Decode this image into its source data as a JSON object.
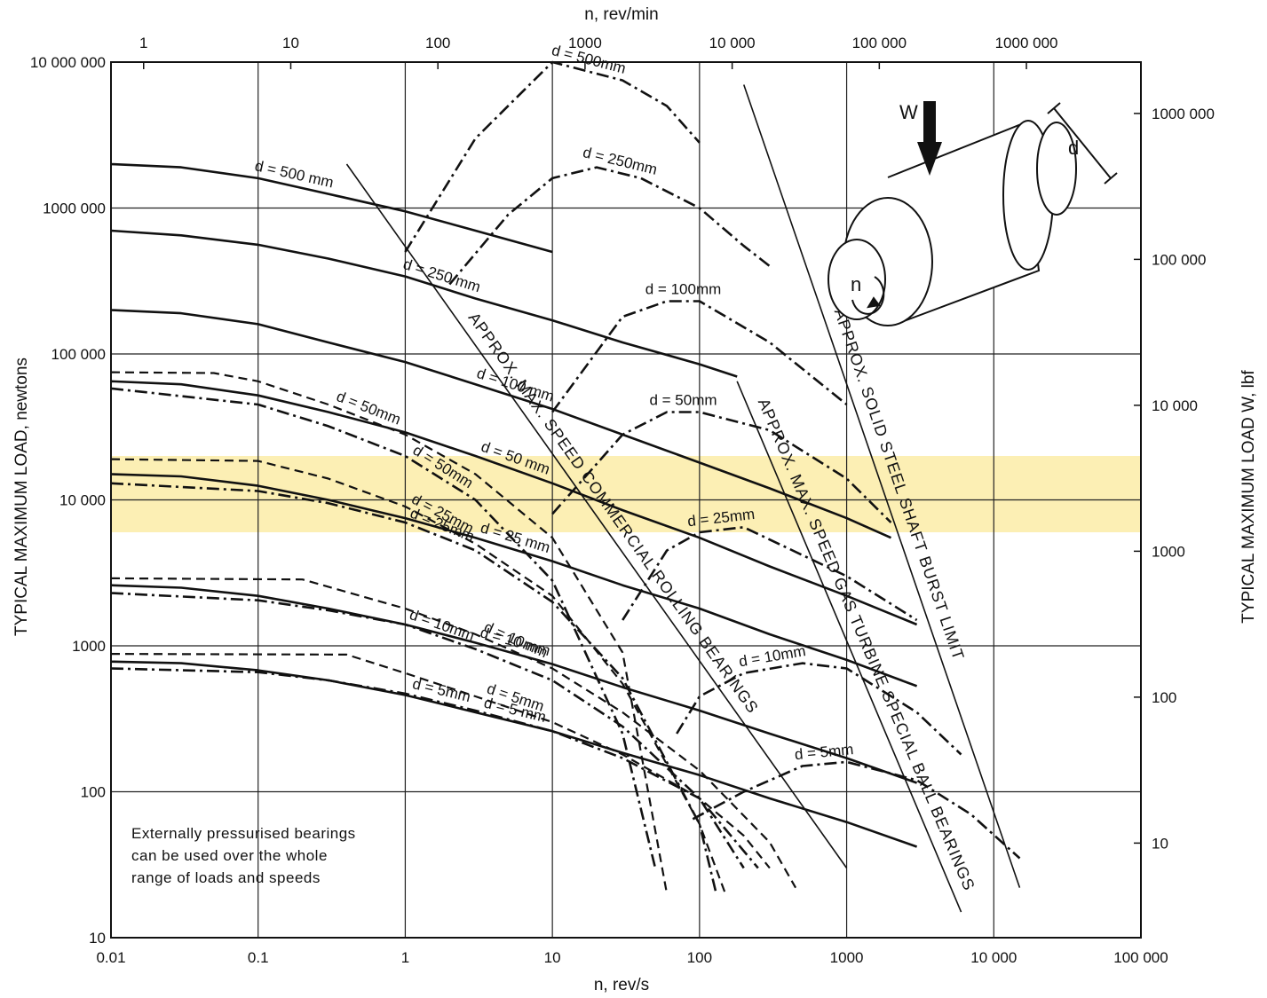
{
  "chart_data": {
    "type": "line",
    "title": "",
    "xlabel": "n, rev/s",
    "xlabel_top": "n, rev/min",
    "ylabel": "TYPICAL MAXIMUM LOAD, newtons",
    "ylabel_right": "TYPICAL MAXIMUM LOAD W, lbf",
    "xscale": "log",
    "yscale": "log",
    "xlim": [
      0.01,
      100000
    ],
    "ylim": [
      10,
      10000000
    ],
    "x_ticks": [
      "0.01",
      "0.1",
      "1",
      "10",
      "100",
      "1000",
      "10 000",
      "100 000"
    ],
    "x_top_ticks": [
      "1",
      "10",
      "100",
      "1000",
      "10 000",
      "100 000",
      "1000 000"
    ],
    "y_ticks": [
      "10",
      "100",
      "1000",
      "10 000",
      "100 000",
      "1000 000",
      "10 000 000"
    ],
    "y_right_ticks": [
      "10",
      "100",
      "1000",
      "10 000",
      "100 000",
      "1000 000"
    ],
    "grid": true,
    "highlight": {
      "y_range": [
        6000,
        20000
      ],
      "color": "#fcefb4"
    },
    "note": [
      "Externally pressurised bearings",
      "can be used over the whole",
      "range of loads and speeds"
    ],
    "inset": {
      "load_label": "W",
      "speed_label": "n",
      "diameter_label": "d"
    },
    "series": [
      {
        "name": "d = 500 mm",
        "style": "solid",
        "x": [
          0.01,
          0.03,
          0.1,
          0.3,
          1,
          3,
          10
        ],
        "y": [
          2000000,
          1900000,
          1600000,
          1250000,
          950000,
          700000,
          500000
        ]
      },
      {
        "name": "d = 250 mm",
        "style": "solid",
        "x": [
          0.01,
          0.03,
          0.1,
          0.3,
          1,
          3,
          10,
          30,
          100,
          180
        ],
        "y": [
          700000,
          650000,
          560000,
          450000,
          340000,
          240000,
          170000,
          120000,
          85000,
          70000
        ]
      },
      {
        "name": "d = 100 mm",
        "style": "solid",
        "x": [
          0.01,
          0.03,
          0.1,
          0.3,
          1,
          3,
          10,
          30,
          100,
          300,
          1000,
          2000
        ],
        "y": [
          200000,
          190000,
          160000,
          120000,
          88000,
          62000,
          42000,
          28000,
          18000,
          12000,
          7500,
          5500
        ]
      },
      {
        "name": "d = 50 mm",
        "style": "solid",
        "x": [
          0.01,
          0.03,
          0.1,
          0.3,
          1,
          3,
          10,
          30,
          100,
          300,
          1000,
          3000
        ],
        "y": [
          65000,
          62000,
          52000,
          40000,
          29000,
          20000,
          13000,
          8500,
          5500,
          3500,
          2200,
          1400
        ]
      },
      {
        "name": "d = 25 mm",
        "style": "solid",
        "x": [
          0.01,
          0.03,
          0.1,
          0.3,
          1,
          3,
          10,
          30,
          100,
          300,
          1000,
          3000
        ],
        "y": [
          15000,
          14500,
          12500,
          10000,
          7500,
          5500,
          3800,
          2600,
          1800,
          1200,
          800,
          530
        ]
      },
      {
        "name": "d = 10 mm",
        "style": "solid",
        "x": [
          0.01,
          0.03,
          0.1,
          0.3,
          1,
          3,
          10,
          30,
          100,
          300,
          1000,
          3000
        ],
        "y": [
          2600,
          2500,
          2200,
          1800,
          1400,
          1050,
          750,
          520,
          360,
          250,
          170,
          115
        ]
      },
      {
        "name": "d = 5 mm",
        "style": "solid",
        "x": [
          0.01,
          0.03,
          0.1,
          0.3,
          1,
          3,
          10,
          30,
          100,
          300,
          1000,
          3000
        ],
        "y": [
          780,
          760,
          680,
          580,
          460,
          350,
          260,
          185,
          130,
          90,
          62,
          42
        ]
      },
      {
        "name": "d = 50mm",
        "style": "dashed",
        "x": [
          0.01,
          0.05,
          0.1,
          0.3,
          1,
          3,
          10,
          30,
          60
        ],
        "y": [
          75000,
          74000,
          65000,
          45000,
          28000,
          15000,
          5500,
          900,
          20
        ]
      },
      {
        "name": "d = 25mm",
        "style": "dashed",
        "x": [
          0.01,
          0.1,
          0.3,
          1,
          3,
          10,
          30,
          100,
          150
        ],
        "y": [
          19000,
          18500,
          14000,
          9000,
          5000,
          2200,
          550,
          60,
          20
        ]
      },
      {
        "name": "d = 10mm",
        "style": "dashed",
        "x": [
          0.01,
          0.2,
          1,
          3,
          10,
          30,
          100,
          300,
          450
        ],
        "y": [
          2900,
          2850,
          1800,
          1200,
          700,
          350,
          140,
          45,
          22
        ]
      },
      {
        "name": "d = 5mm",
        "style": "dashed",
        "x": [
          0.01,
          0.4,
          1,
          3,
          10,
          30,
          100,
          200,
          300
        ],
        "y": [
          880,
          870,
          650,
          450,
          300,
          180,
          90,
          50,
          30
        ]
      },
      {
        "name": "d = 50mm",
        "style": "dash-dot",
        "x": [
          0.01,
          0.1,
          0.3,
          1,
          3,
          10,
          30,
          50
        ],
        "y": [
          58000,
          45000,
          32000,
          20000,
          10000,
          2800,
          250,
          30
        ]
      },
      {
        "name": "d = 25mm",
        "style": "dash-dot",
        "x": [
          0.01,
          0.1,
          0.3,
          1,
          3,
          10,
          30,
          100,
          130
        ],
        "y": [
          13000,
          11500,
          9500,
          7000,
          4500,
          2000,
          600,
          60,
          20
        ]
      },
      {
        "name": "d = 10mm",
        "style": "dash-dot",
        "x": [
          0.01,
          0.1,
          0.3,
          1,
          3,
          10,
          30,
          100,
          200
        ],
        "y": [
          2300,
          2050,
          1750,
          1400,
          950,
          580,
          280,
          90,
          30
        ]
      },
      {
        "name": "d = 5mm",
        "style": "dash-dot",
        "x": [
          0.01,
          0.1,
          0.3,
          1,
          3,
          10,
          30,
          100,
          250
        ],
        "y": [
          700,
          660,
          580,
          470,
          360,
          260,
          170,
          90,
          30
        ]
      },
      {
        "name": "d = 500mm",
        "style": "dash-dot",
        "x": [
          1,
          3,
          10,
          30,
          60,
          100
        ],
        "y": [
          500000,
          3000000,
          10000000,
          7500000,
          5000000,
          2800000
        ]
      },
      {
        "name": "d = 250mm",
        "style": "dash-dot",
        "x": [
          2,
          5,
          10,
          20,
          40,
          100,
          200,
          300
        ],
        "y": [
          300000,
          900000,
          1600000,
          1900000,
          1600000,
          1000000,
          550000,
          400000
        ]
      },
      {
        "name": "d = 100mm",
        "style": "dash-dot",
        "x": [
          10,
          30,
          60,
          100,
          300,
          1000
        ],
        "y": [
          40000,
          180000,
          230000,
          230000,
          120000,
          45000
        ]
      },
      {
        "name": "d = 50mm",
        "style": "dash-dot",
        "x": [
          10,
          30,
          60,
          100,
          300,
          1000,
          2000
        ],
        "y": [
          8000,
          28000,
          40000,
          40000,
          30000,
          14000,
          7000
        ]
      },
      {
        "name": "d = 25mm",
        "style": "dash-dot",
        "x": [
          30,
          60,
          100,
          200,
          1000,
          3000
        ],
        "y": [
          1500,
          4500,
          6000,
          6500,
          3000,
          1500
        ]
      },
      {
        "name": "d = 10mm",
        "style": "dash-dot",
        "x": [
          70,
          100,
          200,
          500,
          1000,
          3000,
          6000
        ],
        "y": [
          250,
          450,
          650,
          760,
          700,
          350,
          180
        ]
      },
      {
        "name": "d = 5mm",
        "style": "dash-dot",
        "x": [
          90,
          200,
          500,
          1000,
          3000,
          7000,
          15000
        ],
        "y": [
          65,
          100,
          150,
          160,
          120,
          70,
          35
        ]
      }
    ],
    "limit_lines": [
      {
        "name": "APPROX. MAX. SPEED COMMERCIAL ROLLING BEARINGS",
        "x": [
          0.4,
          1000
        ],
        "y": [
          2000000,
          30
        ]
      },
      {
        "name": "APPROX. MAX. SPEED GAS TURBINE SPECIAL BALL BEARINGS",
        "x": [
          180,
          6000
        ],
        "y": [
          65000,
          15
        ]
      },
      {
        "name": "APPROX. SOLID STEEL SHAFT BURST LIMIT",
        "x": [
          200,
          15000
        ],
        "y": [
          7000000,
          22
        ]
      }
    ]
  }
}
